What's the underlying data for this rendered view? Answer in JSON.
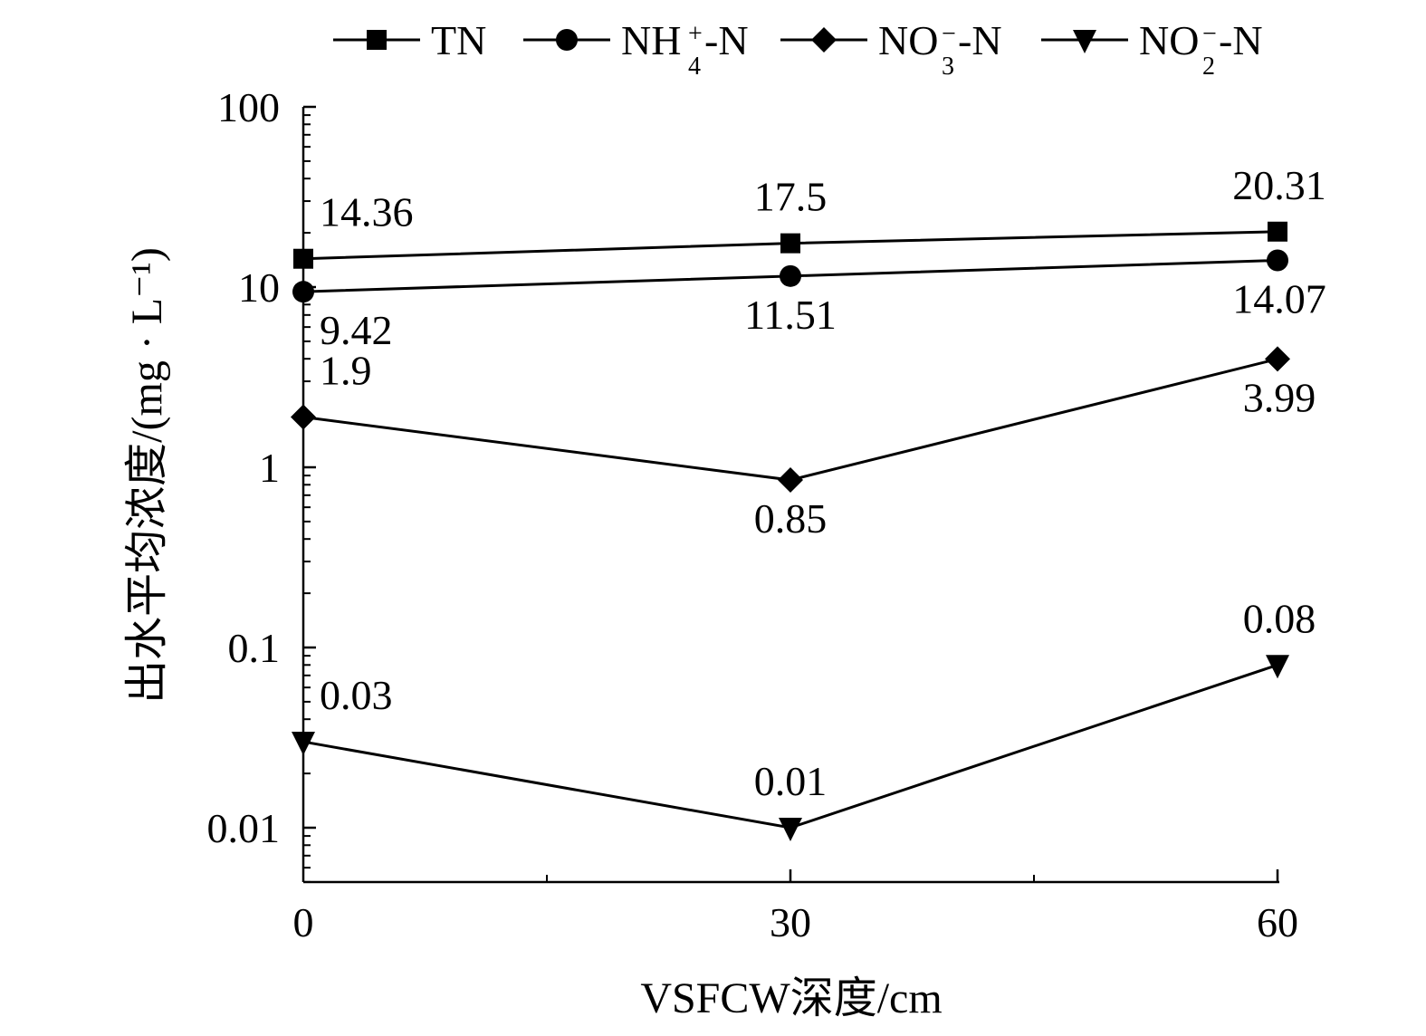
{
  "chart_data": {
    "type": "line",
    "title": "",
    "xlabel": "VSFCW深度/cm",
    "ylabel": "出水平均浓度/(mg · L⁻¹)",
    "yscale": "log",
    "ylim": [
      0.005,
      100
    ],
    "xlim": [
      0,
      60
    ],
    "x": [
      0,
      30,
      60
    ],
    "x_tick_labels": [
      "0",
      "30",
      "60"
    ],
    "y_tick_labels": [
      "0.01",
      "0.1",
      "1",
      "10",
      "100"
    ],
    "y_tick_values": [
      0.01,
      0.1,
      1,
      10,
      100
    ],
    "grid": false,
    "legend_position": "top",
    "series": [
      {
        "name": "TN",
        "name_base": "TN",
        "name_sup": "",
        "name_sub": "",
        "name_suffix": "",
        "marker": "square",
        "values": [
          14.36,
          17.5,
          20.31
        ],
        "data_labels": [
          "14.36",
          "17.5",
          "20.31"
        ],
        "label_position": [
          "above",
          "above",
          "above"
        ]
      },
      {
        "name": "NH4+-N",
        "name_base": "NH",
        "name_sup": "+",
        "name_sub": "4",
        "name_suffix": "-N",
        "marker": "circle",
        "values": [
          9.42,
          11.51,
          14.07
        ],
        "data_labels": [
          "9.42",
          "11.51",
          "14.07"
        ],
        "label_position": [
          "below",
          "below",
          "below"
        ]
      },
      {
        "name": "NO3−-N",
        "name_base": "NO",
        "name_sup": "−",
        "name_sub": "3",
        "name_suffix": "-N",
        "marker": "diamond",
        "values": [
          1.9,
          0.85,
          3.99
        ],
        "data_labels": [
          "1.9",
          "0.85",
          "3.99"
        ],
        "label_position": [
          "above",
          "below",
          "below"
        ]
      },
      {
        "name": "NO2−-N",
        "name_base": "NO",
        "name_sup": "−",
        "name_sub": "2",
        "name_suffix": "-N",
        "marker": "triangle-down",
        "values": [
          0.03,
          0.01,
          0.08
        ],
        "data_labels": [
          "0.03",
          "0.01",
          "0.08"
        ],
        "label_position": [
          "above",
          "above",
          "above"
        ]
      }
    ]
  }
}
